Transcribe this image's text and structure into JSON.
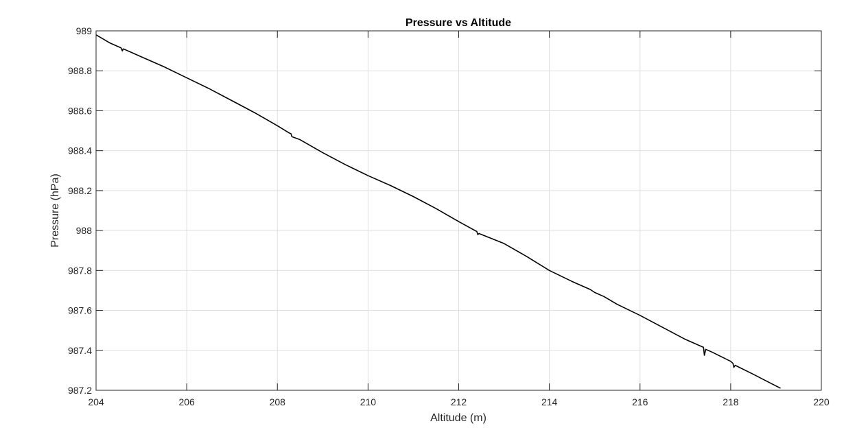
{
  "chart_data": {
    "type": "line",
    "title": "Pressure vs Altitude",
    "xlabel": "Altitude (m)",
    "ylabel": "Pressure (hPa)",
    "xlim": [
      204,
      220
    ],
    "ylim": [
      987.2,
      989
    ],
    "xticks": [
      204,
      206,
      208,
      210,
      212,
      214,
      216,
      218,
      220
    ],
    "xtick_labels": [
      "204",
      "206",
      "208",
      "210",
      "212",
      "214",
      "216",
      "218",
      "220"
    ],
    "yticks": [
      987.2,
      987.4,
      987.6,
      987.8,
      988,
      988.2,
      988.4,
      988.6,
      988.8,
      989
    ],
    "ytick_labels": [
      "987.2",
      "987.4",
      "987.6",
      "987.8",
      "988",
      "988.2",
      "988.4",
      "988.6",
      "988.8",
      "989"
    ],
    "grid": true,
    "legend": "none",
    "series": [
      {
        "color": "#000000",
        "x": [
          204.0,
          204.3,
          204.55,
          204.58,
          204.6,
          204.8,
          205.0,
          205.5,
          206.0,
          206.5,
          207.0,
          207.5,
          208.0,
          208.25,
          208.3,
          208.32,
          208.5,
          209.0,
          209.5,
          210.0,
          210.5,
          211.0,
          211.5,
          212.0,
          212.4,
          212.42,
          212.45,
          213.0,
          213.5,
          214.0,
          214.5,
          214.9,
          215.0,
          215.2,
          215.5,
          216.0,
          216.5,
          217.0,
          217.4,
          217.42,
          217.45,
          217.6,
          218.0,
          218.05,
          218.07,
          218.1,
          218.5,
          218.8,
          219.1
        ],
        "y": [
          988.98,
          988.94,
          988.915,
          988.9,
          988.91,
          988.89,
          988.87,
          988.82,
          988.765,
          988.71,
          988.65,
          988.59,
          988.525,
          988.49,
          988.485,
          988.47,
          988.455,
          988.39,
          988.33,
          988.275,
          988.225,
          988.17,
          988.11,
          988.045,
          987.995,
          987.98,
          987.985,
          987.935,
          987.87,
          987.8,
          987.745,
          987.705,
          987.69,
          987.67,
          987.63,
          987.575,
          987.515,
          987.455,
          987.415,
          987.375,
          987.405,
          987.39,
          987.345,
          987.335,
          987.315,
          987.325,
          987.28,
          987.245,
          987.21
        ]
      }
    ]
  }
}
